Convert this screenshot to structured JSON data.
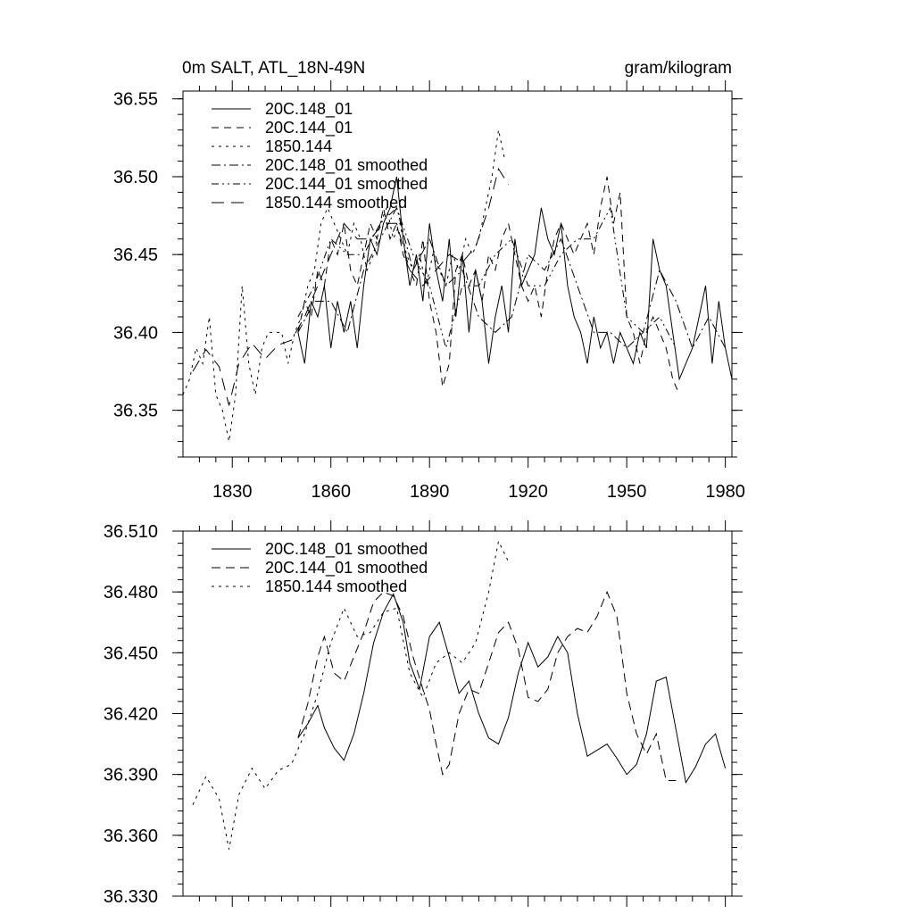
{
  "header": {
    "left": "0m SALT, ATL_18N-49N",
    "right": "gram/kilogram"
  },
  "chart_data": [
    {
      "type": "line",
      "xlim": [
        1815,
        1982
      ],
      "ylim": [
        36.32,
        36.555
      ],
      "x_ticks": [
        1830,
        1860,
        1890,
        1920,
        1950,
        1980
      ],
      "x_tick_labels": [
        "1830",
        "1860",
        "1890",
        "1920",
        "1950",
        "1980"
      ],
      "y_ticks": [
        36.35,
        36.4,
        36.45,
        36.5,
        36.55
      ],
      "y_tick_labels": [
        "36.35",
        "36.40",
        "36.45",
        "36.50",
        "36.55"
      ],
      "grid": false,
      "legend_position": "top-left",
      "series": [
        {
          "name": "20C.148_01",
          "dash": "solid",
          "x": [
            1850,
            1852,
            1854,
            1856,
            1858,
            1860,
            1862,
            1864,
            1866,
            1868,
            1870,
            1872,
            1874,
            1876,
            1878,
            1880,
            1882,
            1884,
            1886,
            1888,
            1890,
            1892,
            1894,
            1896,
            1898,
            1900,
            1902,
            1904,
            1906,
            1908,
            1910,
            1912,
            1914,
            1916,
            1918,
            1920,
            1922,
            1924,
            1926,
            1928,
            1930,
            1932,
            1934,
            1936,
            1938,
            1940,
            1942,
            1944,
            1946,
            1948,
            1950,
            1952,
            1954,
            1956,
            1958,
            1960,
            1962,
            1964,
            1966,
            1968,
            1970,
            1972,
            1974,
            1976,
            1978,
            1980,
            1982
          ],
          "y": [
            36.4,
            36.38,
            36.42,
            36.41,
            36.43,
            36.39,
            36.42,
            36.4,
            36.42,
            36.39,
            36.43,
            36.46,
            36.45,
            36.47,
            36.48,
            36.5,
            36.46,
            36.43,
            36.45,
            36.42,
            36.47,
            36.44,
            36.42,
            36.46,
            36.41,
            36.45,
            36.4,
            36.44,
            36.42,
            36.38,
            36.41,
            36.43,
            36.4,
            36.46,
            36.43,
            36.44,
            36.45,
            36.48,
            36.46,
            36.45,
            36.47,
            36.43,
            36.41,
            36.4,
            36.38,
            36.41,
            36.39,
            36.4,
            36.38,
            36.4,
            36.39,
            36.38,
            36.4,
            36.39,
            36.46,
            36.44,
            36.43,
            36.4,
            36.37,
            36.38,
            36.39,
            36.41,
            36.43,
            36.38,
            36.42,
            36.39,
            36.37
          ]
        },
        {
          "name": "20C.144_01",
          "dash": "8,6",
          "x": [
            1850,
            1852,
            1854,
            1856,
            1858,
            1860,
            1862,
            1864,
            1866,
            1868,
            1870,
            1872,
            1874,
            1876,
            1878,
            1880,
            1882,
            1884,
            1886,
            1888,
            1890,
            1892,
            1894,
            1896,
            1898,
            1900,
            1902,
            1904,
            1906,
            1908,
            1910,
            1912,
            1914,
            1916,
            1918,
            1920,
            1922,
            1924,
            1926,
            1928,
            1930,
            1932,
            1934,
            1936,
            1938,
            1940,
            1942,
            1944,
            1946,
            1948,
            1950,
            1952,
            1954,
            1956,
            1958,
            1960,
            1962,
            1964,
            1966
          ],
          "y": [
            36.4,
            36.42,
            36.41,
            36.44,
            36.43,
            36.46,
            36.45,
            36.47,
            36.44,
            36.43,
            36.45,
            36.47,
            36.46,
            36.48,
            36.46,
            36.47,
            36.45,
            36.44,
            36.43,
            36.46,
            36.42,
            36.4,
            36.365,
            36.38,
            36.44,
            36.45,
            36.43,
            36.44,
            36.42,
            36.45,
            36.44,
            36.46,
            36.47,
            36.45,
            36.43,
            36.42,
            36.43,
            36.41,
            36.44,
            36.46,
            36.47,
            36.46,
            36.45,
            36.46,
            36.47,
            36.45,
            36.48,
            36.5,
            36.47,
            36.49,
            36.41,
            36.4,
            36.38,
            36.4,
            36.41,
            36.4,
            36.39,
            36.37,
            36.36
          ],
          "y_note": ""
        },
        {
          "name": "1850.144",
          "dash": "3,5",
          "x": [
            1815,
            1817,
            1819,
            1821,
            1823,
            1825,
            1827,
            1829,
            1831,
            1833,
            1835,
            1837,
            1839,
            1841,
            1843,
            1845,
            1847,
            1849,
            1851,
            1853,
            1855,
            1857,
            1859,
            1861,
            1863,
            1865,
            1867,
            1869,
            1871,
            1873,
            1875,
            1877,
            1879,
            1881,
            1883,
            1885,
            1887,
            1889,
            1891,
            1893,
            1895,
            1897,
            1899,
            1901,
            1903,
            1905,
            1907,
            1909,
            1911,
            1913
          ],
          "y": [
            36.36,
            36.37,
            36.39,
            36.38,
            36.41,
            36.36,
            36.35,
            36.33,
            36.36,
            36.43,
            36.38,
            36.36,
            36.39,
            36.4,
            36.4,
            36.4,
            36.38,
            36.4,
            36.41,
            36.43,
            36.44,
            36.47,
            36.48,
            36.47,
            36.46,
            36.45,
            36.47,
            36.46,
            36.44,
            36.45,
            36.47,
            36.48,
            36.46,
            36.47,
            36.45,
            36.44,
            36.45,
            36.43,
            36.45,
            36.44,
            36.43,
            36.45,
            36.44,
            36.46,
            36.45,
            36.46,
            36.48,
            36.5,
            36.53,
            36.51
          ]
        },
        {
          "name": "20C.148_01 smoothed",
          "dash": "10,4,2,4",
          "x": [
            1850,
            1855,
            1860,
            1865,
            1870,
            1875,
            1880,
            1885,
            1890,
            1895,
            1900,
            1905,
            1910,
            1915,
            1920,
            1925,
            1930,
            1935,
            1940,
            1945,
            1950,
            1955,
            1960,
            1965,
            1970,
            1975,
            1980
          ],
          "y": [
            36.4,
            36.42,
            36.42,
            36.4,
            36.44,
            36.46,
            36.48,
            36.44,
            36.46,
            36.43,
            36.44,
            36.41,
            36.4,
            36.41,
            36.45,
            36.44,
            36.46,
            36.43,
            36.4,
            36.4,
            36.39,
            36.4,
            36.44,
            36.42,
            36.39,
            36.41,
            36.39
          ]
        },
        {
          "name": "20C.144_01 smoothed",
          "dash": "8,4,2,4,2,4",
          "x": [
            1850,
            1855,
            1860,
            1865,
            1870,
            1875,
            1880,
            1885,
            1890,
            1895,
            1900,
            1905,
            1910,
            1915,
            1920,
            1925,
            1930,
            1935,
            1940,
            1945,
            1950,
            1955,
            1960,
            1965
          ],
          "y": [
            36.41,
            36.43,
            36.46,
            36.45,
            36.45,
            36.47,
            36.48,
            36.45,
            36.43,
            36.39,
            36.43,
            36.43,
            36.45,
            36.46,
            36.43,
            36.43,
            36.45,
            36.46,
            36.46,
            36.48,
            36.41,
            36.4,
            36.41,
            36.39
          ]
        },
        {
          "name": "1850.144 smoothed",
          "dash": "14,8",
          "x": [
            1818,
            1822,
            1826,
            1829,
            1832,
            1836,
            1840,
            1844,
            1848,
            1852,
            1856,
            1860,
            1864,
            1868,
            1872,
            1876,
            1880,
            1884,
            1888,
            1892,
            1896,
            1900,
            1904,
            1908,
            1911,
            1914
          ],
          "y": [
            36.375,
            36.389,
            36.378,
            36.353,
            36.38,
            36.393,
            36.383,
            36.392,
            36.395,
            36.41,
            36.43,
            36.45,
            36.47,
            36.46,
            36.46,
            36.47,
            36.47,
            36.44,
            36.43,
            36.44,
            36.45,
            36.445,
            36.455,
            36.48,
            36.505,
            36.495
          ]
        }
      ]
    },
    {
      "type": "line",
      "xlim": [
        1815,
        1982
      ],
      "ylim": [
        36.33,
        36.51
      ],
      "x_ticks": [
        1830,
        1860,
        1890,
        1920,
        1950,
        1980
      ],
      "y_ticks": [
        36.33,
        36.36,
        36.39,
        36.42,
        36.45,
        36.48,
        36.51
      ],
      "y_tick_labels": [
        "36.330",
        "36.360",
        "36.390",
        "36.420",
        "36.450",
        "36.480",
        "36.510"
      ],
      "grid": false,
      "legend_position": "top-left",
      "series": [
        {
          "name": "20C.148_01 smoothed",
          "dash": "solid",
          "x": [
            1850,
            1853,
            1856,
            1858,
            1861,
            1864,
            1867,
            1870,
            1873,
            1876,
            1879,
            1882,
            1884,
            1887,
            1890,
            1893,
            1896,
            1899,
            1902,
            1905,
            1908,
            1911,
            1914,
            1917,
            1920,
            1923,
            1926,
            1929,
            1932,
            1935,
            1938,
            1941,
            1944,
            1947,
            1950,
            1953,
            1956,
            1959,
            1962,
            1965,
            1968,
            1971,
            1974,
            1977,
            1980
          ],
          "y": [
            36.408,
            36.415,
            36.424,
            36.413,
            36.403,
            36.397,
            36.41,
            36.43,
            36.455,
            36.47,
            36.479,
            36.465,
            36.445,
            36.432,
            36.458,
            36.465,
            36.448,
            36.43,
            36.436,
            36.42,
            36.408,
            36.405,
            36.418,
            36.44,
            36.455,
            36.443,
            36.448,
            36.458,
            36.45,
            36.42,
            36.399,
            36.402,
            36.405,
            36.398,
            36.39,
            36.395,
            36.41,
            36.436,
            36.438,
            36.412,
            36.386,
            36.394,
            36.405,
            36.41,
            36.393
          ]
        },
        {
          "name": "20C.144_01 smoothed",
          "dash": "10,6",
          "x": [
            1850,
            1853,
            1856,
            1858,
            1861,
            1864,
            1867,
            1870,
            1873,
            1876,
            1879,
            1882,
            1885,
            1888,
            1890,
            1892,
            1894,
            1896,
            1899,
            1902,
            1905,
            1908,
            1911,
            1914,
            1917,
            1920,
            1923,
            1926,
            1929,
            1932,
            1935,
            1938,
            1941,
            1944,
            1947,
            1950,
            1953,
            1956,
            1959,
            1962,
            1965
          ],
          "y": [
            36.408,
            36.425,
            36.448,
            36.458,
            36.44,
            36.436,
            36.448,
            36.46,
            36.475,
            36.48,
            36.478,
            36.468,
            36.448,
            36.432,
            36.422,
            36.405,
            36.39,
            36.395,
            36.42,
            36.432,
            36.43,
            36.445,
            36.46,
            36.465,
            36.452,
            36.428,
            36.426,
            36.432,
            36.45,
            36.458,
            36.462,
            36.46,
            36.468,
            36.48,
            36.468,
            36.43,
            36.41,
            36.4,
            36.41,
            36.387,
            36.387
          ]
        },
        {
          "name": "1850.144 smoothed",
          "dash": "3,5",
          "x": [
            1818,
            1822,
            1826,
            1829,
            1832,
            1836,
            1840,
            1844,
            1848,
            1852,
            1856,
            1860,
            1864,
            1868,
            1872,
            1876,
            1880,
            1884,
            1888,
            1892,
            1896,
            1900,
            1904,
            1908,
            1911,
            1914
          ],
          "y": [
            36.375,
            36.389,
            36.378,
            36.353,
            36.38,
            36.393,
            36.383,
            36.392,
            36.395,
            36.41,
            36.43,
            36.455,
            36.472,
            36.458,
            36.46,
            36.47,
            36.472,
            36.44,
            36.428,
            36.445,
            36.45,
            36.445,
            36.455,
            36.48,
            36.505,
            36.495
          ]
        }
      ]
    }
  ]
}
